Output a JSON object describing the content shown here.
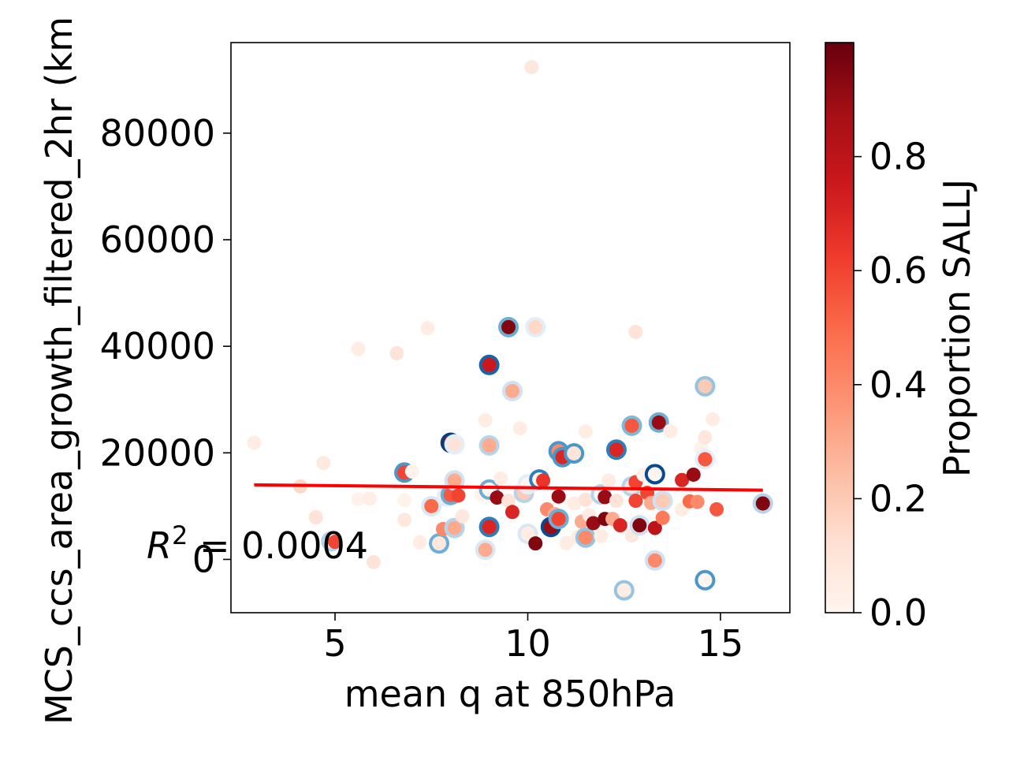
{
  "chart_data": {
    "type": "scatter",
    "title": "",
    "xlabel": "mean q at 850hPa",
    "ylabel": "MCS_ccs_area_growth_filtered_2hr (km",
    "xlim": [
      2.3,
      16.8
    ],
    "ylim": [
      -10000,
      97000
    ],
    "xticks": [
      "5",
      "10",
      "15"
    ],
    "yticks": [
      "0",
      "20000",
      "40000",
      "60000",
      "80000"
    ],
    "xtick_values": [
      5,
      10,
      15
    ],
    "ytick_values": [
      0,
      20000,
      40000,
      60000,
      80000
    ],
    "grid": false,
    "colorbar": {
      "label": "Proportion SALLJ",
      "cmap": "Reds",
      "range": [
        0,
        1
      ],
      "ticks": [
        "0.0",
        "0.2",
        "0.4",
        "0.6",
        "0.8"
      ],
      "tick_values": [
        0.0,
        0.2,
        0.4,
        0.6,
        0.8
      ]
    },
    "annotation": "R² = 0.0004",
    "regression_line": {
      "x": [
        2.9,
        16.1
      ],
      "y": [
        14000,
        13000
      ],
      "color": "#ff0000"
    },
    "points": [
      {
        "x": 2.9,
        "y": 21900,
        "c": 0.05
      },
      {
        "x": 4.1,
        "y": 13700,
        "c": 0.15
      },
      {
        "x": 4.7,
        "y": 18100,
        "c": 0.07
      },
      {
        "x": 4.5,
        "y": 7900,
        "c": 0.1
      },
      {
        "x": 4.9,
        "y": 3400,
        "c": 0.0,
        "ring": 0.3
      },
      {
        "x": 5.0,
        "y": 3300,
        "c": 0.6
      },
      {
        "x": 5.6,
        "y": 39500,
        "c": 0.05
      },
      {
        "x": 5.6,
        "y": 11300,
        "c": 0.02
      },
      {
        "x": 5.9,
        "y": 11400,
        "c": 0.04
      },
      {
        "x": 6.0,
        "y": -500,
        "c": 0.1
      },
      {
        "x": 6.6,
        "y": 38700,
        "c": 0.1
      },
      {
        "x": 6.8,
        "y": 16300,
        "c": 0.6,
        "ring": 0.6
      },
      {
        "x": 6.8,
        "y": 11100,
        "c": 0.02
      },
      {
        "x": 6.8,
        "y": 7400,
        "c": 0.08
      },
      {
        "x": 7.0,
        "y": 16500,
        "c": 0.02
      },
      {
        "x": 7.2,
        "y": 3200,
        "c": 0.05
      },
      {
        "x": 7.4,
        "y": 43400,
        "c": 0.05
      },
      {
        "x": 7.5,
        "y": 10000,
        "c": 0.5,
        "ring": 0.15
      },
      {
        "x": 7.7,
        "y": 3000,
        "c": 0.08,
        "ring": 0.5
      },
      {
        "x": 7.8,
        "y": 5700,
        "c": 0.4
      },
      {
        "x": 7.9,
        "y": 11800,
        "c": 0.02,
        "ring": 0.1
      },
      {
        "x": 8.0,
        "y": 21900,
        "c": 0.9,
        "ring": 0.95
      },
      {
        "x": 8.0,
        "y": 12100,
        "c": 0.55,
        "ring": 0.5
      },
      {
        "x": 8.1,
        "y": 21600,
        "c": 0.1,
        "ring": 0.1
      },
      {
        "x": 8.1,
        "y": 14800,
        "c": 0.3,
        "ring": 0.2
      },
      {
        "x": 8.1,
        "y": 5900,
        "c": 0.3,
        "ring": 0.3
      },
      {
        "x": 8.2,
        "y": 12000,
        "c": 0.6
      },
      {
        "x": 8.3,
        "y": 8100,
        "c": 0.08
      },
      {
        "x": 8.8,
        "y": 12200,
        "c": 0.02
      },
      {
        "x": 8.9,
        "y": 26100,
        "c": 0.05
      },
      {
        "x": 8.9,
        "y": 1800,
        "c": 0.3,
        "ring": 0.15
      },
      {
        "x": 9.0,
        "y": 36500,
        "c": 0.75,
        "ring": 0.8
      },
      {
        "x": 9.0,
        "y": 21400,
        "c": 0.3,
        "ring": 0.3
      },
      {
        "x": 9.0,
        "y": 13100,
        "c": 0.0,
        "ring": 0.5
      },
      {
        "x": 9.0,
        "y": 6100,
        "c": 0.7,
        "ring": 0.7
      },
      {
        "x": 9.2,
        "y": 11600,
        "c": 0.9
      },
      {
        "x": 9.3,
        "y": 15200,
        "c": 0.05
      },
      {
        "x": 9.5,
        "y": 43600,
        "c": 0.95,
        "ring": 0.5
      },
      {
        "x": 9.5,
        "y": 11000,
        "c": 0.1
      },
      {
        "x": 9.6,
        "y": 31600,
        "c": 0.3,
        "ring": 0.2
      },
      {
        "x": 9.6,
        "y": 8900,
        "c": 0.7
      },
      {
        "x": 9.8,
        "y": 24600,
        "c": 0.05
      },
      {
        "x": 9.9,
        "y": 12500,
        "c": 0.2,
        "ring": 0.3
      },
      {
        "x": 10.0,
        "y": 14100,
        "c": 0.0,
        "ring": 0.1
      },
      {
        "x": 10.0,
        "y": 4800,
        "c": 0.05,
        "ring": 0.15
      },
      {
        "x": 10.1,
        "y": 92400,
        "c": 0.08
      },
      {
        "x": 10.2,
        "y": 43600,
        "c": 0.15,
        "ring": 0.1
      },
      {
        "x": 10.2,
        "y": 3000,
        "c": 0.95
      },
      {
        "x": 10.3,
        "y": 15000,
        "c": 0.0,
        "ring": 0.7
      },
      {
        "x": 10.4,
        "y": 14800,
        "c": 0.65
      },
      {
        "x": 10.5,
        "y": 9400,
        "c": 0.4
      },
      {
        "x": 10.6,
        "y": 6100,
        "c": 0.9,
        "ring": 0.9
      },
      {
        "x": 10.7,
        "y": 8500,
        "c": 0.3
      },
      {
        "x": 10.8,
        "y": 20300,
        "c": 0.4,
        "ring": 0.6
      },
      {
        "x": 10.8,
        "y": 11800,
        "c": 0.9
      },
      {
        "x": 10.8,
        "y": 7600,
        "c": 0.6,
        "ring": 0.5
      },
      {
        "x": 10.9,
        "y": 19200,
        "c": 0.7,
        "ring": 0.6
      },
      {
        "x": 11.0,
        "y": 3100,
        "c": 0.05
      },
      {
        "x": 11.2,
        "y": 19900,
        "c": 0.1,
        "ring": 0.6
      },
      {
        "x": 11.2,
        "y": 10500,
        "c": 0.05
      },
      {
        "x": 11.3,
        "y": 4200,
        "c": 0.05
      },
      {
        "x": 11.4,
        "y": 7100,
        "c": 0.3
      },
      {
        "x": 11.5,
        "y": 24000,
        "c": 0.05
      },
      {
        "x": 11.5,
        "y": 11200,
        "c": 0.1
      },
      {
        "x": 11.5,
        "y": 4100,
        "c": 0.4,
        "ring": 0.4
      },
      {
        "x": 11.6,
        "y": 8300,
        "c": 0.05
      },
      {
        "x": 11.7,
        "y": 6800,
        "c": 0.9
      },
      {
        "x": 11.9,
        "y": 12200,
        "c": 0.0,
        "ring": 0.3
      },
      {
        "x": 11.9,
        "y": 4400,
        "c": 0.05
      },
      {
        "x": 12.0,
        "y": 7600,
        "c": 0.95
      },
      {
        "x": 12.0,
        "y": 11700,
        "c": 0.9
      },
      {
        "x": 12.1,
        "y": 14800,
        "c": 0.05
      },
      {
        "x": 12.2,
        "y": 7600,
        "c": 0.3
      },
      {
        "x": 12.3,
        "y": 20600,
        "c": 0.7,
        "ring": 0.7
      },
      {
        "x": 12.3,
        "y": 11000,
        "c": 0.1
      },
      {
        "x": 12.4,
        "y": 6400,
        "c": 0.7
      },
      {
        "x": 12.5,
        "y": -5800,
        "c": 0.05,
        "ring": 0.4
      },
      {
        "x": 12.7,
        "y": 25100,
        "c": 0.55,
        "ring": 0.45
      },
      {
        "x": 12.7,
        "y": 13700,
        "c": 0.1,
        "ring": 0.3
      },
      {
        "x": 12.7,
        "y": 4500,
        "c": 0.08
      },
      {
        "x": 12.8,
        "y": 42700,
        "c": 0.1
      },
      {
        "x": 12.8,
        "y": 14500,
        "c": 0.6
      },
      {
        "x": 12.8,
        "y": 11000,
        "c": 0.6
      },
      {
        "x": 12.9,
        "y": 6400,
        "c": 0.95,
        "ring": 0.2
      },
      {
        "x": 13.0,
        "y": 15900,
        "c": 0.02
      },
      {
        "x": 13.1,
        "y": 12500,
        "c": 0.6
      },
      {
        "x": 13.2,
        "y": 10600,
        "c": 0.3
      },
      {
        "x": 13.3,
        "y": 16000,
        "c": 0.0,
        "ring": 0.9
      },
      {
        "x": 13.3,
        "y": 5900,
        "c": 0.8
      },
      {
        "x": 13.3,
        "y": -200,
        "c": 0.4,
        "ring": 0.2
      },
      {
        "x": 13.4,
        "y": 25700,
        "c": 0.9,
        "ring": 0.5
      },
      {
        "x": 13.5,
        "y": 11000,
        "c": 0.2,
        "ring": 0.2
      },
      {
        "x": 13.5,
        "y": 7800,
        "c": 0.45
      },
      {
        "x": 13.7,
        "y": 24100,
        "c": 0.05
      },
      {
        "x": 14.0,
        "y": 14900,
        "c": 0.7
      },
      {
        "x": 14.0,
        "y": 9400,
        "c": 0.05
      },
      {
        "x": 14.2,
        "y": 10900,
        "c": 0.5
      },
      {
        "x": 14.3,
        "y": 15900,
        "c": 0.9
      },
      {
        "x": 14.4,
        "y": 10800,
        "c": 0.4
      },
      {
        "x": 14.5,
        "y": 20900,
        "c": 0.02
      },
      {
        "x": 14.6,
        "y": 32500,
        "c": 0.2,
        "ring": 0.4
      },
      {
        "x": 14.6,
        "y": 22900,
        "c": 0.08
      },
      {
        "x": 14.6,
        "y": 18800,
        "c": 0.55,
        "ring": 0.1
      },
      {
        "x": 14.6,
        "y": -3900,
        "c": 0.0,
        "ring": 0.6
      },
      {
        "x": 14.8,
        "y": 26300,
        "c": 0.05
      },
      {
        "x": 14.9,
        "y": 9400,
        "c": 0.55
      },
      {
        "x": 16.1,
        "y": 10500,
        "c": 0.95,
        "ring": 0.3
      }
    ]
  }
}
